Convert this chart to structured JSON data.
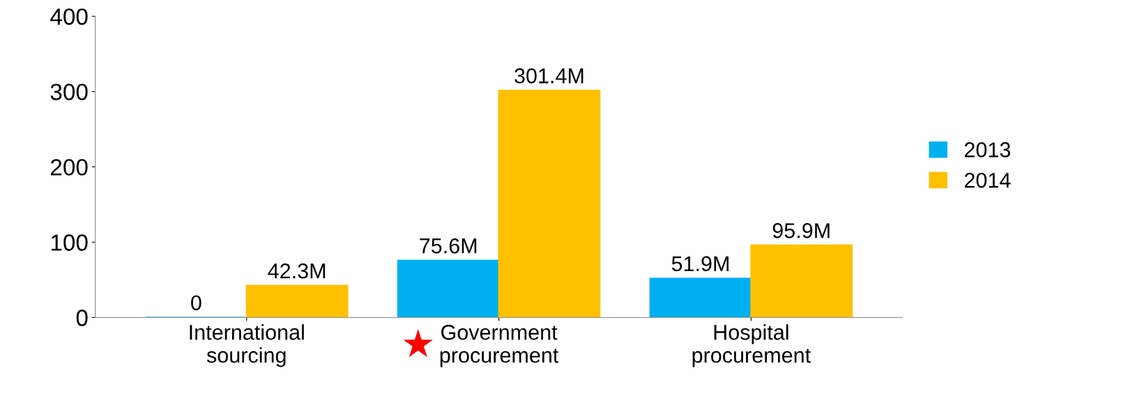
{
  "chart_data": {
    "type": "bar",
    "categories": [
      "International\nsourcing",
      "Government\nprocurement",
      "Hospital\nprocurement"
    ],
    "series": [
      {
        "name": "2013",
        "color": "#00b0f0",
        "values": [
          0,
          75.6,
          51.9
        ],
        "value_labels": [
          "0",
          "75.6M",
          "51.9M"
        ]
      },
      {
        "name": "2014",
        "color": "#ffc000",
        "values": [
          42.3,
          301.4,
          95.9
        ],
        "value_labels": [
          "42.3M",
          "301.4M",
          "95.9M"
        ]
      }
    ],
    "ylim": [
      0,
      400
    ],
    "yticks": [
      0,
      100,
      200,
      300,
      400
    ],
    "grid": false,
    "legend": "right"
  }
}
